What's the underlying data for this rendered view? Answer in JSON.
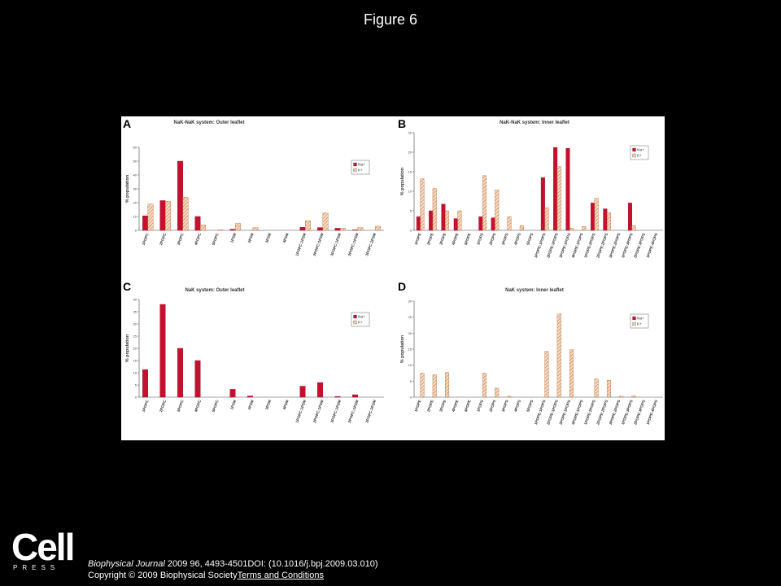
{
  "slide": {
    "title": "Figure 6",
    "citation": {
      "journal": "Biophysical Journal",
      "details": " 2009 96, 4493-4501DOI: (10.1016/j.bpj.2009.03.010)",
      "copyright": "Copyright © 2009 Biophysical Society",
      "terms_link": "Terms and Conditions"
    },
    "logo": {
      "word": "Cell",
      "sub": "PRESS"
    }
  },
  "chart_data": [
    {
      "panel": "A",
      "type": "bar",
      "title": "NaK-NaK system: Outer leaflet",
      "ylabel": "% population",
      "xlabel": "",
      "ylim": [
        0,
        60
      ],
      "yticks": [
        0,
        10,
        20,
        30,
        40,
        50,
        60
      ],
      "legend": "top-right",
      "categories": [
        "1POPC",
        "2POPC",
        "3POPC",
        "4POPC",
        "5POPC",
        "1PSM",
        "2PSM",
        "3PSM",
        "4PSM",
        "1POPC:1PSM",
        "2POPC:1PSM",
        "3POPC:1PSM",
        "2POPC:1PSM",
        "3POPC:2PSM"
      ],
      "series": [
        {
          "name": "Na+",
          "color": "#c8102e",
          "pattern": "solid",
          "values": [
            10.5,
            21.5,
            50,
            10,
            0,
            0.8,
            0,
            0,
            0,
            2.2,
            2,
            1.5,
            0.3,
            0
          ]
        },
        {
          "name": "K+",
          "color": "#f2c49a",
          "pattern": "hatch",
          "values": [
            19,
            21,
            24,
            4,
            0.3,
            5,
            2,
            0,
            0,
            7,
            12.5,
            1.5,
            2,
            3
          ]
        }
      ]
    },
    {
      "panel": "B",
      "type": "bar",
      "title": "NaK-NaK system: Inner leaflet",
      "ylabel": "% population",
      "xlabel": "",
      "ylim": [
        0,
        25
      ],
      "yticks": [
        0,
        5,
        10,
        15,
        20,
        25
      ],
      "legend": "top-right",
      "categories": [
        "1POPE",
        "2POPE",
        "3POPE",
        "4POPE",
        "5POPE",
        "1POPS",
        "2POPS",
        "3POPS",
        "4POPS",
        "5POPS",
        "1POPE:1POPS",
        "2POPE:1POPS",
        "3POPE:1POPS",
        "4POPE:1POPS",
        "1POPE:2POPS",
        "2POPE:2POPS",
        "3POPE:2POPS",
        "1POPE:3POPS",
        "2POPE:3POPS",
        "1POPE:4POPS"
      ],
      "series": [
        {
          "name": "Na+",
          "color": "#c8102e",
          "pattern": "solid",
          "values": [
            3.5,
            5,
            6.7,
            3,
            0,
            3.5,
            3.2,
            0,
            0,
            0,
            13.5,
            21.2,
            21,
            0,
            7,
            5.5,
            0,
            7,
            0,
            0
          ]
        },
        {
          "name": "K+",
          "color": "#f2c49a",
          "pattern": "hatch",
          "values": [
            13.2,
            10.7,
            5,
            5,
            0,
            14,
            10.3,
            3.5,
            1.2,
            0,
            5.8,
            16.3,
            0.6,
            1,
            8.2,
            4.5,
            0,
            1.2,
            0,
            0
          ]
        }
      ]
    },
    {
      "panel": "C",
      "type": "bar",
      "title": "NaK system: Outer leaflet",
      "ylabel": "% population",
      "xlabel": "",
      "ylim": [
        0,
        40
      ],
      "yticks": [
        0,
        5,
        10,
        15,
        20,
        25,
        30,
        35,
        40
      ],
      "legend": "top-right",
      "categories": [
        "1POPC",
        "2POPC",
        "3POPC",
        "4POPC",
        "5POPC",
        "1PSM",
        "2PSM",
        "3PSM",
        "4PSM",
        "1POPC:1PSM",
        "2POPC:1PSM",
        "3POPC:1PSM",
        "2POPC:1PSM",
        "2POPC:2PSM"
      ],
      "series": [
        {
          "name": "Na+",
          "color": "#c8102e",
          "pattern": "solid",
          "values": [
            11.3,
            38,
            20,
            15,
            0,
            3.2,
            0.5,
            0,
            0,
            4.5,
            6,
            0.3,
            1,
            0
          ]
        },
        {
          "name": "K+",
          "color": "#f2c49a",
          "pattern": "hatch",
          "values": [
            0,
            0,
            0,
            0,
            0,
            0,
            0,
            0,
            0,
            0,
            0,
            0,
            0,
            0
          ]
        }
      ]
    },
    {
      "panel": "D",
      "type": "bar",
      "title": "NaK system: Inner leaflet",
      "ylabel": "% population",
      "xlabel": "",
      "ylim": [
        0,
        30
      ],
      "yticks": [
        0,
        5,
        10,
        15,
        20,
        25,
        30
      ],
      "legend": "top-right",
      "categories": [
        "1POPE",
        "2POPE",
        "3POPE",
        "4POPE",
        "5POPE",
        "1POPS",
        "2POPS",
        "3POPS",
        "4POPS",
        "5POPS",
        "1POPE:1POPS",
        "2POPE:1POPS",
        "3POPE:1POPS",
        "4POPE:1POPS",
        "1POPE:2POPS",
        "2POPE:2POPS",
        "3POPE:2POPS",
        "1POPE:3POPS",
        "2POPE:3POPS",
        "1POPE:4POPS"
      ],
      "series": [
        {
          "name": "Na+",
          "color": "#c8102e",
          "pattern": "solid",
          "values": [
            0,
            0,
            0,
            0,
            0,
            0,
            0,
            0,
            0,
            0,
            0,
            0,
            0,
            0,
            0,
            0,
            0,
            0,
            0,
            0
          ]
        },
        {
          "name": "K+",
          "color": "#f2c49a",
          "pattern": "hatch",
          "values": [
            7.5,
            7,
            7.7,
            0,
            0,
            7.5,
            2.8,
            0.3,
            0,
            0,
            14.3,
            26,
            14.8,
            0,
            5.7,
            5.3,
            0.3,
            0.4,
            0,
            0
          ]
        }
      ]
    }
  ]
}
